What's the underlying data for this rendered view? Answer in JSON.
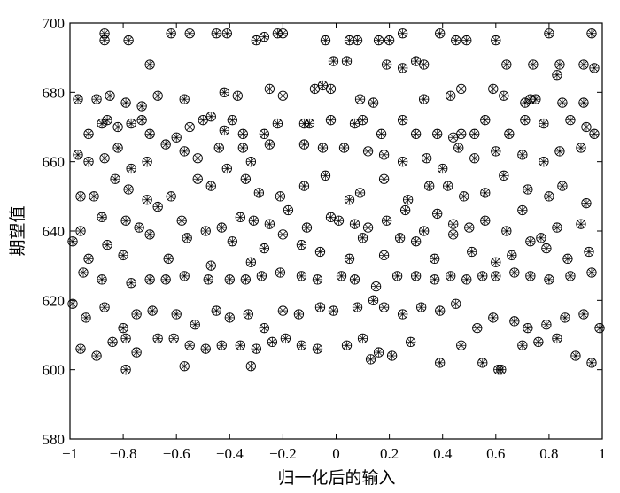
{
  "chart_data": {
    "type": "scatter",
    "xlabel": "归一化后的输入",
    "ylabel": "期望值",
    "xlim": [
      -1,
      1
    ],
    "ylim": [
      580,
      700
    ],
    "x_ticks": [
      -1,
      -0.8,
      -0.6,
      -0.4,
      -0.2,
      0,
      0.2,
      0.4,
      0.6,
      0.8,
      1
    ],
    "x_tick_labels": [
      "−1",
      "−0.8",
      "−0.6",
      "−0.4",
      "−0.2",
      "0",
      "0.2",
      "0.4",
      "0.6",
      "0.8",
      "1"
    ],
    "y_ticks": [
      580,
      600,
      620,
      640,
      660,
      680,
      700
    ],
    "y_tick_labels": [
      "580",
      "600",
      "620",
      "640",
      "660",
      "680",
      "700"
    ],
    "grid": false,
    "marker": "circle-with-asterisk",
    "points": [
      [
        -0.87,
        697
      ],
      [
        -0.87,
        695
      ],
      [
        -0.78,
        695
      ],
      [
        -0.7,
        688
      ],
      [
        -0.62,
        697
      ],
      [
        -0.55,
        697
      ],
      [
        -0.45,
        697
      ],
      [
        -0.41,
        697
      ],
      [
        -0.3,
        695
      ],
      [
        -0.27,
        696
      ],
      [
        -0.22,
        697
      ],
      [
        -0.2,
        697
      ],
      [
        -0.04,
        695
      ],
      [
        0.05,
        695
      ],
      [
        0.08,
        695
      ],
      [
        0.16,
        695
      ],
      [
        0.2,
        695
      ],
      [
        0.25,
        697
      ],
      [
        0.3,
        689
      ],
      [
        0.39,
        697
      ],
      [
        0.45,
        695
      ],
      [
        0.49,
        695
      ],
      [
        0.6,
        695
      ],
      [
        0.8,
        697
      ],
      [
        0.96,
        697
      ],
      [
        -0.01,
        689
      ],
      [
        0.04,
        689
      ],
      [
        0.19,
        688
      ],
      [
        0.25,
        687
      ],
      [
        0.33,
        688
      ],
      [
        0.64,
        688
      ],
      [
        0.74,
        688
      ],
      [
        0.84,
        688
      ],
      [
        0.93,
        688
      ],
      [
        0.97,
        687
      ],
      [
        0.83,
        685
      ],
      [
        -0.97,
        678
      ],
      [
        -0.9,
        678
      ],
      [
        -0.85,
        679
      ],
      [
        -0.79,
        677
      ],
      [
        -0.73,
        676
      ],
      [
        -0.67,
        679
      ],
      [
        -0.57,
        678
      ],
      [
        -0.42,
        680
      ],
      [
        -0.37,
        679
      ],
      [
        -0.25,
        681
      ],
      [
        -0.2,
        679
      ],
      [
        -0.08,
        681
      ],
      [
        -0.05,
        682
      ],
      [
        -0.02,
        681
      ],
      [
        0.09,
        678
      ],
      [
        0.14,
        677
      ],
      [
        0.33,
        678
      ],
      [
        0.43,
        679
      ],
      [
        0.47,
        681
      ],
      [
        0.59,
        681
      ],
      [
        0.63,
        679
      ],
      [
        0.71,
        677
      ],
      [
        0.73,
        678
      ],
      [
        0.75,
        678
      ],
      [
        0.85,
        677
      ],
      [
        0.93,
        677
      ],
      [
        -0.93,
        668
      ],
      [
        -0.88,
        671
      ],
      [
        -0.86,
        672
      ],
      [
        -0.82,
        670
      ],
      [
        -0.77,
        671
      ],
      [
        -0.73,
        672
      ],
      [
        -0.7,
        668
      ],
      [
        -0.6,
        667
      ],
      [
        -0.55,
        670
      ],
      [
        -0.5,
        672
      ],
      [
        -0.47,
        673
      ],
      [
        -0.42,
        669
      ],
      [
        -0.39,
        672
      ],
      [
        -0.35,
        668
      ],
      [
        -0.27,
        668
      ],
      [
        -0.22,
        671
      ],
      [
        -0.12,
        671
      ],
      [
        -0.1,
        671
      ],
      [
        -0.02,
        672
      ],
      [
        0.07,
        671
      ],
      [
        0.1,
        672
      ],
      [
        0.17,
        668
      ],
      [
        0.25,
        672
      ],
      [
        0.3,
        668
      ],
      [
        0.38,
        668
      ],
      [
        0.44,
        667
      ],
      [
        0.47,
        668
      ],
      [
        0.52,
        668
      ],
      [
        0.56,
        672
      ],
      [
        0.65,
        668
      ],
      [
        0.71,
        672
      ],
      [
        0.78,
        671
      ],
      [
        0.88,
        672
      ],
      [
        0.94,
        670
      ],
      [
        0.97,
        668
      ],
      [
        -0.97,
        662
      ],
      [
        -0.93,
        660
      ],
      [
        -0.87,
        661
      ],
      [
        -0.82,
        664
      ],
      [
        -0.77,
        658
      ],
      [
        -0.71,
        660
      ],
      [
        -0.64,
        665
      ],
      [
        -0.57,
        663
      ],
      [
        -0.52,
        661
      ],
      [
        -0.44,
        664
      ],
      [
        -0.35,
        664
      ],
      [
        -0.32,
        660
      ],
      [
        -0.25,
        665
      ],
      [
        -0.12,
        665
      ],
      [
        -0.05,
        664
      ],
      [
        0.03,
        664
      ],
      [
        0.12,
        663
      ],
      [
        0.18,
        662
      ],
      [
        0.25,
        660
      ],
      [
        0.34,
        661
      ],
      [
        0.4,
        658
      ],
      [
        0.46,
        664
      ],
      [
        0.52,
        661
      ],
      [
        0.6,
        663
      ],
      [
        0.7,
        662
      ],
      [
        0.78,
        660
      ],
      [
        0.84,
        663
      ],
      [
        0.92,
        664
      ],
      [
        -0.96,
        650
      ],
      [
        -0.91,
        650
      ],
      [
        -0.83,
        655
      ],
      [
        -0.78,
        652
      ],
      [
        -0.71,
        649
      ],
      [
        -0.62,
        650
      ],
      [
        -0.52,
        655
      ],
      [
        -0.47,
        653
      ],
      [
        -0.41,
        658
      ],
      [
        -0.34,
        655
      ],
      [
        -0.29,
        651
      ],
      [
        -0.21,
        650
      ],
      [
        -0.12,
        653
      ],
      [
        -0.04,
        656
      ],
      [
        0.05,
        649
      ],
      [
        0.09,
        651
      ],
      [
        0.18,
        655
      ],
      [
        0.27,
        649
      ],
      [
        0.35,
        653
      ],
      [
        0.42,
        653
      ],
      [
        0.48,
        650
      ],
      [
        0.56,
        651
      ],
      [
        0.63,
        656
      ],
      [
        0.72,
        652
      ],
      [
        0.8,
        650
      ],
      [
        0.85,
        653
      ],
      [
        0.94,
        648
      ],
      [
        -0.96,
        640
      ],
      [
        -0.88,
        644
      ],
      [
        -0.79,
        643
      ],
      [
        -0.74,
        641
      ],
      [
        -0.67,
        647
      ],
      [
        -0.58,
        643
      ],
      [
        -0.49,
        640
      ],
      [
        -0.43,
        641
      ],
      [
        -0.36,
        644
      ],
      [
        -0.31,
        643
      ],
      [
        -0.25,
        642
      ],
      [
        -0.18,
        646
      ],
      [
        -0.11,
        641
      ],
      [
        -0.02,
        644
      ],
      [
        0.01,
        643
      ],
      [
        0.07,
        642
      ],
      [
        0.12,
        641
      ],
      [
        0.19,
        643
      ],
      [
        0.26,
        646
      ],
      [
        0.33,
        640
      ],
      [
        0.38,
        645
      ],
      [
        0.44,
        642
      ],
      [
        0.5,
        641
      ],
      [
        0.56,
        643
      ],
      [
        0.64,
        640
      ],
      [
        0.7,
        646
      ],
      [
        0.77,
        638
      ],
      [
        0.83,
        641
      ],
      [
        0.92,
        642
      ],
      [
        -0.99,
        637
      ],
      [
        -0.93,
        632
      ],
      [
        -0.86,
        636
      ],
      [
        -0.8,
        633
      ],
      [
        -0.7,
        639
      ],
      [
        -0.63,
        632
      ],
      [
        -0.56,
        638
      ],
      [
        -0.47,
        630
      ],
      [
        -0.39,
        637
      ],
      [
        -0.32,
        631
      ],
      [
        -0.27,
        635
      ],
      [
        -0.2,
        639
      ],
      [
        -0.13,
        636
      ],
      [
        -0.06,
        634
      ],
      [
        0.05,
        632
      ],
      [
        0.1,
        638
      ],
      [
        0.18,
        633
      ],
      [
        0.24,
        638
      ],
      [
        0.3,
        637
      ],
      [
        0.37,
        632
      ],
      [
        0.44,
        639
      ],
      [
        0.51,
        634
      ],
      [
        0.6,
        631
      ],
      [
        0.66,
        633
      ],
      [
        0.73,
        637
      ],
      [
        0.79,
        635
      ],
      [
        0.87,
        632
      ],
      [
        0.95,
        634
      ],
      [
        -0.95,
        628
      ],
      [
        -0.88,
        626
      ],
      [
        -0.77,
        625
      ],
      [
        -0.7,
        626
      ],
      [
        -0.64,
        626
      ],
      [
        -0.57,
        627
      ],
      [
        -0.48,
        626
      ],
      [
        -0.4,
        626
      ],
      [
        -0.34,
        626
      ],
      [
        -0.28,
        627
      ],
      [
        -0.21,
        628
      ],
      [
        -0.13,
        627
      ],
      [
        -0.07,
        626
      ],
      [
        0.02,
        627
      ],
      [
        0.07,
        626
      ],
      [
        0.15,
        624
      ],
      [
        0.23,
        627
      ],
      [
        0.3,
        627
      ],
      [
        0.37,
        626
      ],
      [
        0.43,
        627
      ],
      [
        0.49,
        626
      ],
      [
        0.55,
        627
      ],
      [
        0.6,
        627
      ],
      [
        0.67,
        628
      ],
      [
        0.73,
        627
      ],
      [
        0.8,
        626
      ],
      [
        0.88,
        627
      ],
      [
        0.96,
        628
      ],
      [
        -0.99,
        619
      ],
      [
        -0.94,
        615
      ],
      [
        -0.87,
        618
      ],
      [
        -0.8,
        612
      ],
      [
        -0.75,
        616
      ],
      [
        -0.69,
        617
      ],
      [
        -0.6,
        616
      ],
      [
        -0.53,
        613
      ],
      [
        -0.45,
        617
      ],
      [
        -0.4,
        615
      ],
      [
        -0.33,
        616
      ],
      [
        -0.27,
        612
      ],
      [
        -0.2,
        617
      ],
      [
        -0.14,
        616
      ],
      [
        -0.06,
        618
      ],
      [
        -0.01,
        617
      ],
      [
        0.08,
        618
      ],
      [
        0.14,
        620
      ],
      [
        0.18,
        618
      ],
      [
        0.25,
        616
      ],
      [
        0.32,
        618
      ],
      [
        0.39,
        617
      ],
      [
        0.45,
        619
      ],
      [
        0.53,
        612
      ],
      [
        0.59,
        615
      ],
      [
        0.67,
        614
      ],
      [
        0.72,
        612
      ],
      [
        0.79,
        613
      ],
      [
        0.86,
        615
      ],
      [
        0.93,
        616
      ],
      [
        0.99,
        612
      ],
      [
        -0.96,
        606
      ],
      [
        -0.9,
        604
      ],
      [
        -0.84,
        608
      ],
      [
        -0.79,
        609
      ],
      [
        -0.75,
        605
      ],
      [
        -0.67,
        609
      ],
      [
        -0.61,
        609
      ],
      [
        -0.55,
        607
      ],
      [
        -0.49,
        606
      ],
      [
        -0.43,
        607
      ],
      [
        -0.36,
        607
      ],
      [
        -0.3,
        606
      ],
      [
        -0.24,
        608
      ],
      [
        -0.19,
        609
      ],
      [
        -0.13,
        607
      ],
      [
        -0.07,
        606
      ],
      [
        0.04,
        607
      ],
      [
        0.1,
        609
      ],
      [
        0.16,
        605
      ],
      [
        0.21,
        604
      ],
      [
        0.28,
        608
      ],
      [
        0.39,
        602
      ],
      [
        0.47,
        607
      ],
      [
        0.55,
        602
      ],
      [
        0.62,
        600
      ],
      [
        0.7,
        607
      ],
      [
        0.76,
        608
      ],
      [
        0.83,
        609
      ],
      [
        0.9,
        604
      ],
      [
        0.96,
        602
      ],
      [
        -0.79,
        600
      ],
      [
        -0.57,
        601
      ],
      [
        -0.32,
        601
      ],
      [
        0.13,
        603
      ],
      [
        0.61,
        600
      ]
    ]
  }
}
